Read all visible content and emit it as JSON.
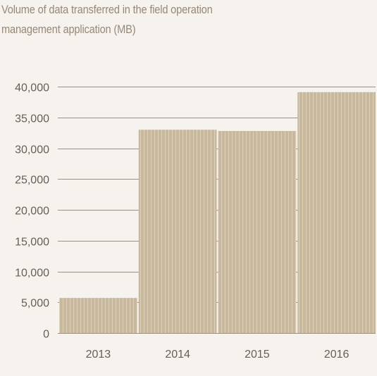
{
  "chart_data": {
    "type": "bar",
    "title": "Volume of data transferred in the field operation management application (MB)",
    "xlabel": "",
    "ylabel": "",
    "categories": [
      "2013",
      "2014",
      "2015",
      "2016"
    ],
    "values": [
      5700,
      33000,
      32800,
      39100
    ],
    "ylim": [
      0,
      40000
    ],
    "yticks": [
      0,
      5000,
      10000,
      15000,
      20000,
      25000,
      30000,
      35000,
      40000
    ],
    "ytick_labels": [
      "0",
      "5,000",
      "10,000",
      "15,000",
      "20,000",
      "25,000",
      "30,000",
      "35,000",
      "40,000"
    ],
    "grid": true,
    "legend": "none",
    "colors": {
      "bar": "#c8b89c",
      "bar_stripe": "#ddd0bb",
      "grid": "#9a9087",
      "axis_text": "#675e56",
      "title": "#958876",
      "background": "#f6f3ef"
    }
  }
}
